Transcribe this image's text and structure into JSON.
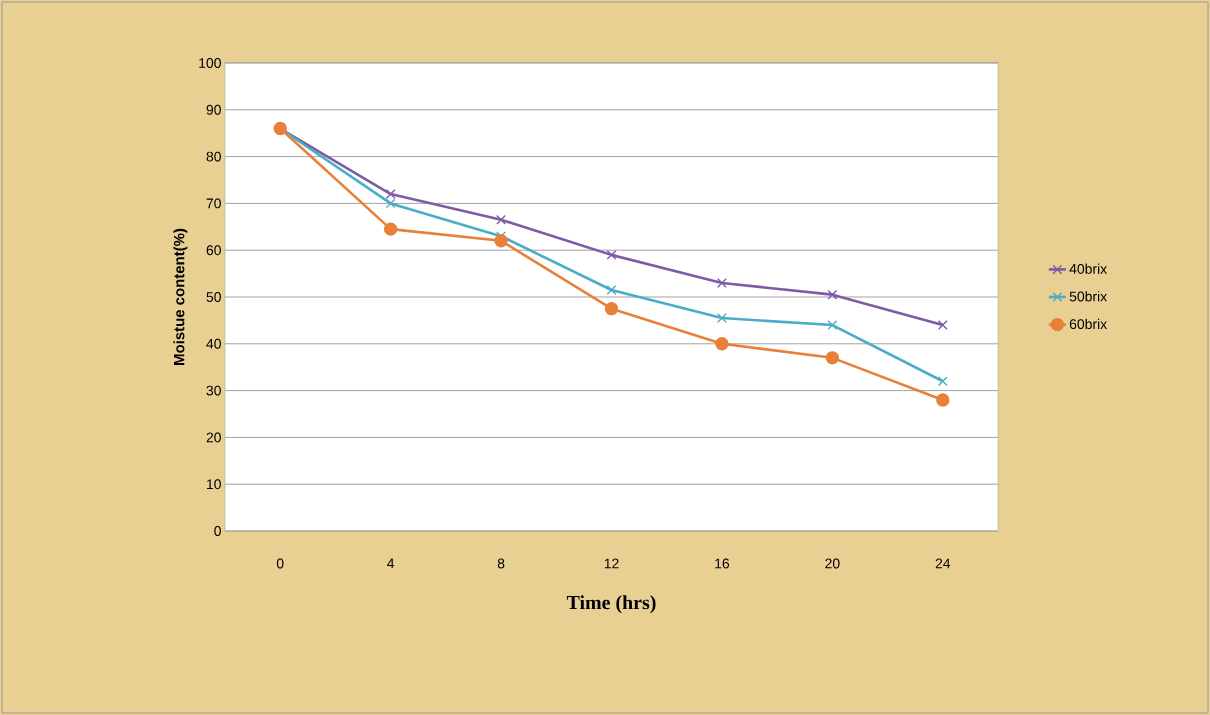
{
  "chart_data": {
    "type": "line",
    "xlabel": "Time (hrs)",
    "ylabel": "Moistue content(%)",
    "categories": [
      "0",
      "4",
      "8",
      "12",
      "16",
      "20",
      "24"
    ],
    "series": [
      {
        "name": "40brix",
        "color": "#7d5ba6",
        "marker": "cross",
        "values": [
          86,
          72,
          66.5,
          59,
          53,
          50.5,
          44
        ]
      },
      {
        "name": "50brix",
        "color": "#4bacc6",
        "marker": "cross",
        "values": [
          86,
          70,
          63,
          51.5,
          45.5,
          44,
          32
        ]
      },
      {
        "name": "60brix",
        "color": "#e8803a",
        "marker": "circle",
        "values": [
          86,
          64.5,
          62,
          47.5,
          40,
          37,
          28
        ]
      }
    ],
    "ylim": [
      0,
      100
    ],
    "yticks": [
      0,
      10,
      20,
      30,
      40,
      50,
      60,
      70,
      80,
      90,
      100
    ],
    "grid": "y",
    "legend": "right"
  }
}
